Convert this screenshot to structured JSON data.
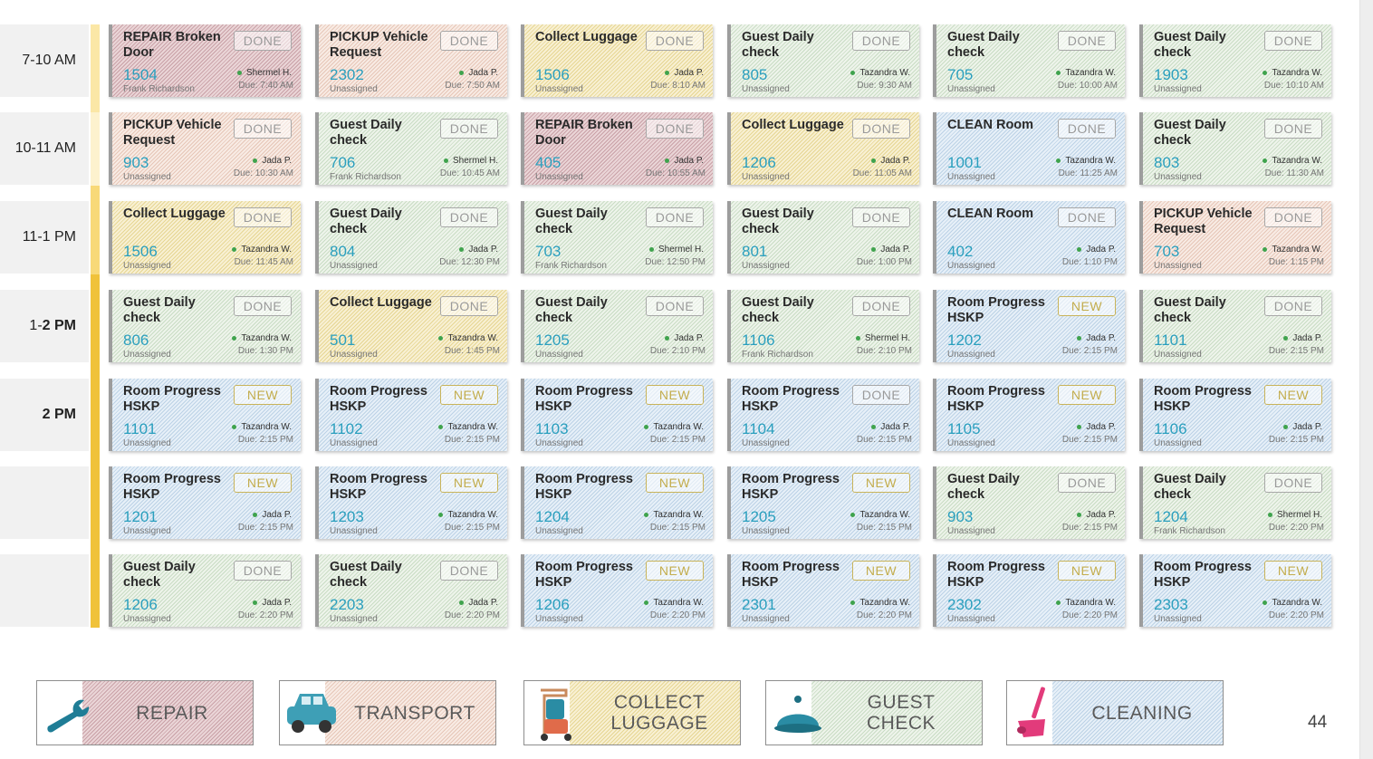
{
  "time_slots": [
    {
      "pre": "7-10 AM",
      "bold": ""
    },
    {
      "pre": "10-11 AM",
      "bold": ""
    },
    {
      "pre": "11-1 PM",
      "bold": ""
    },
    {
      "pre": "1-",
      "bold": "2 PM"
    },
    {
      "pre": "",
      "bold": "2 PM"
    },
    {
      "pre": "",
      "bold": ""
    },
    {
      "pre": "",
      "bold": ""
    }
  ],
  "rows": [
    [
      {
        "type": "repair",
        "title": "REPAIR Broken Door",
        "status": "DONE",
        "room": "1504",
        "staff": "Shermel H.",
        "due": "Due: 7:40 AM",
        "assignee": "Frank Richardson"
      },
      {
        "type": "pickup",
        "title": "PICKUP Vehicle Request",
        "status": "DONE",
        "room": "2302",
        "staff": "Jada P.",
        "due": "Due: 7:50 AM",
        "assignee": "Unassigned"
      },
      {
        "type": "luggage",
        "title": "Collect Luggage",
        "status": "DONE",
        "room": "1506",
        "staff": "Jada P.",
        "due": "Due: 8:10 AM",
        "assignee": "Unassigned"
      },
      {
        "type": "guest",
        "title": "Guest Daily check",
        "status": "DONE",
        "room": "805",
        "staff": "Tazandra W.",
        "due": "Due: 9:30 AM",
        "assignee": "Unassigned"
      },
      {
        "type": "guest",
        "title": "Guest Daily check",
        "status": "DONE",
        "room": "705",
        "staff": "Tazandra W.",
        "due": "Due: 10:00 AM",
        "assignee": "Unassigned"
      },
      {
        "type": "guest",
        "title": "Guest Daily check",
        "status": "DONE",
        "room": "1903",
        "staff": "Tazandra W.",
        "due": "Due: 10:10 AM",
        "assignee": "Unassigned"
      }
    ],
    [
      {
        "type": "pickup",
        "title": "PICKUP Vehicle Request",
        "status": "DONE",
        "room": "903",
        "staff": "Jada P.",
        "due": "Due: 10:30 AM",
        "assignee": "Unassigned"
      },
      {
        "type": "guest",
        "title": "Guest Daily check",
        "status": "DONE",
        "room": "706",
        "staff": "Shermel H.",
        "due": "Due: 10:45 AM",
        "assignee": "Frank Richardson"
      },
      {
        "type": "repair",
        "title": "REPAIR Broken Door",
        "status": "DONE",
        "room": "405",
        "staff": "Jada P.",
        "due": "Due: 10:55 AM",
        "assignee": "Unassigned"
      },
      {
        "type": "luggage",
        "title": "Collect Luggage",
        "status": "DONE",
        "room": "1206",
        "staff": "Jada P.",
        "due": "Due: 11:05 AM",
        "assignee": "Unassigned"
      },
      {
        "type": "clean",
        "title": "CLEAN Room",
        "status": "DONE",
        "room": "1001",
        "staff": "Tazandra W.",
        "due": "Due: 11:25 AM",
        "assignee": "Unassigned"
      },
      {
        "type": "guest",
        "title": "Guest Daily check",
        "status": "DONE",
        "room": "803",
        "staff": "Tazandra W.",
        "due": "Due: 11:30 AM",
        "assignee": "Unassigned"
      }
    ],
    [
      {
        "type": "luggage",
        "title": "Collect Luggage",
        "status": "DONE",
        "room": "1506",
        "staff": "Tazandra W.",
        "due": "Due: 11:45 AM",
        "assignee": "Unassigned"
      },
      {
        "type": "guest",
        "title": "Guest Daily check",
        "status": "DONE",
        "room": "804",
        "staff": "Jada P.",
        "due": "Due: 12:30 PM",
        "assignee": "Unassigned"
      },
      {
        "type": "guest",
        "title": "Guest Daily check",
        "status": "DONE",
        "room": "703",
        "staff": "Shermel H.",
        "due": "Due: 12:50 PM",
        "assignee": "Frank Richardson"
      },
      {
        "type": "guest",
        "title": "Guest Daily check",
        "status": "DONE",
        "room": "801",
        "staff": "Jada P.",
        "due": "Due: 1:00 PM",
        "assignee": "Unassigned"
      },
      {
        "type": "clean",
        "title": "CLEAN Room",
        "status": "DONE",
        "room": "402",
        "staff": "Jada P.",
        "due": "Due: 1:10 PM",
        "assignee": "Unassigned"
      },
      {
        "type": "pickup",
        "title": "PICKUP Vehicle Request",
        "status": "DONE",
        "room": "703",
        "staff": "Tazandra W.",
        "due": "Due: 1:15 PM",
        "assignee": "Unassigned"
      }
    ],
    [
      {
        "type": "guest",
        "title": "Guest Daily check",
        "status": "DONE",
        "room": "806",
        "staff": "Tazandra W.",
        "due": "Due: 1:30 PM",
        "assignee": "Unassigned"
      },
      {
        "type": "luggage",
        "title": "Collect Luggage",
        "status": "DONE",
        "room": "501",
        "staff": "Tazandra W.",
        "due": "Due: 1:45 PM",
        "assignee": "Unassigned"
      },
      {
        "type": "guest",
        "title": "Guest Daily check",
        "status": "DONE",
        "room": "1205",
        "staff": "Jada P.",
        "due": "Due: 2:10 PM",
        "assignee": "Unassigned"
      },
      {
        "type": "guest",
        "title": "Guest Daily check",
        "status": "DONE",
        "room": "1106",
        "staff": "Shermel H.",
        "due": "Due: 2:10 PM",
        "assignee": "Frank Richardson"
      },
      {
        "type": "clean",
        "title": "Room Progress HSKP",
        "status": "NEW",
        "room": "1202",
        "staff": "Jada P.",
        "due": "Due: 2:15 PM",
        "assignee": "Unassigned"
      },
      {
        "type": "guest",
        "title": "Guest Daily check",
        "status": "DONE",
        "room": "1101",
        "staff": "Jada P.",
        "due": "Due: 2:15 PM",
        "assignee": "Unassigned"
      }
    ],
    [
      {
        "type": "clean",
        "title": "Room Progress HSKP",
        "status": "NEW",
        "room": "1101",
        "staff": "Tazandra W.",
        "due": "Due: 2:15 PM",
        "assignee": "Unassigned"
      },
      {
        "type": "clean",
        "title": "Room Progress HSKP",
        "status": "NEW",
        "room": "1102",
        "staff": "Tazandra W.",
        "due": "Due: 2:15 PM",
        "assignee": "Unassigned"
      },
      {
        "type": "clean",
        "title": "Room Progress HSKP",
        "status": "NEW",
        "room": "1103",
        "staff": "Tazandra W.",
        "due": "Due: 2:15 PM",
        "assignee": "Unassigned"
      },
      {
        "type": "clean",
        "title": "Room Progress HSKP",
        "status": "DONE",
        "room": "1104",
        "staff": "Jada P.",
        "due": "Due: 2:15 PM",
        "assignee": "Unassigned"
      },
      {
        "type": "clean",
        "title": "Room Progress HSKP",
        "status": "NEW",
        "room": "1105",
        "staff": "Jada P.",
        "due": "Due: 2:15 PM",
        "assignee": "Unassigned"
      },
      {
        "type": "clean",
        "title": "Room Progress HSKP",
        "status": "NEW",
        "room": "1106",
        "staff": "Jada P.",
        "due": "Due: 2:15 PM",
        "assignee": "Unassigned"
      }
    ],
    [
      {
        "type": "clean",
        "title": "Room Progress HSKP",
        "status": "NEW",
        "room": "1201",
        "staff": "Jada P.",
        "due": "Due: 2:15 PM",
        "assignee": "Unassigned"
      },
      {
        "type": "clean",
        "title": "Room Progress HSKP",
        "status": "NEW",
        "room": "1203",
        "staff": "Tazandra W.",
        "due": "Due: 2:15 PM",
        "assignee": "Unassigned"
      },
      {
        "type": "clean",
        "title": "Room Progress HSKP",
        "status": "NEW",
        "room": "1204",
        "staff": "Tazandra W.",
        "due": "Due: 2:15 PM",
        "assignee": "Unassigned"
      },
      {
        "type": "clean",
        "title": "Room Progress HSKP",
        "status": "NEW",
        "room": "1205",
        "staff": "Tazandra W.",
        "due": "Due: 2:15 PM",
        "assignee": "Unassigned"
      },
      {
        "type": "guest",
        "title": "Guest Daily check",
        "status": "DONE",
        "room": "903",
        "staff": "Jada P.",
        "due": "Due: 2:15 PM",
        "assignee": "Unassigned"
      },
      {
        "type": "guest",
        "title": "Guest Daily check",
        "status": "DONE",
        "room": "1204",
        "staff": "Shermel H.",
        "due": "Due: 2:20 PM",
        "assignee": "Frank Richardson"
      }
    ],
    [
      {
        "type": "guest",
        "title": "Guest Daily check",
        "status": "DONE",
        "room": "1206",
        "staff": "Jada P.",
        "due": "Due: 2:20 PM",
        "assignee": "Unassigned"
      },
      {
        "type": "guest",
        "title": "Guest Daily check",
        "status": "DONE",
        "room": "2203",
        "staff": "Jada P.",
        "due": "Due: 2:20 PM",
        "assignee": "Unassigned"
      },
      {
        "type": "clean",
        "title": "Room Progress HSKP",
        "status": "NEW",
        "room": "1206",
        "staff": "Tazandra W.",
        "due": "Due: 2:20 PM",
        "assignee": "Unassigned"
      },
      {
        "type": "clean",
        "title": "Room Progress HSKP",
        "status": "NEW",
        "room": "2301",
        "staff": "Tazandra W.",
        "due": "Due: 2:20 PM",
        "assignee": "Unassigned"
      },
      {
        "type": "clean",
        "title": "Room Progress HSKP",
        "status": "NEW",
        "room": "2302",
        "staff": "Tazandra W.",
        "due": "Due: 2:20 PM",
        "assignee": "Unassigned"
      },
      {
        "type": "clean",
        "title": "Room Progress HSKP",
        "status": "NEW",
        "room": "2303",
        "staff": "Tazandra W.",
        "due": "Due: 2:20 PM",
        "assignee": "Unassigned"
      }
    ]
  ],
  "legend": [
    {
      "key": "repair",
      "label": "REPAIR",
      "icon": "wrench-icon",
      "color": "#1f7d96"
    },
    {
      "key": "transport",
      "label": "TRANSPORT",
      "icon": "car-icon",
      "color": "#3e9fb6"
    },
    {
      "key": "luggage",
      "label": "COLLECT LUGGAGE",
      "icon": "luggage-cart-icon",
      "color": "#c98a5c"
    },
    {
      "key": "guest",
      "label": "GUEST CHECK",
      "icon": "service-bell-icon",
      "color": "#2a8ca4"
    },
    {
      "key": "clean",
      "label": "CLEANING",
      "icon": "dustpan-icon",
      "color": "#e23b7b"
    }
  ],
  "page_number": "44",
  "colors": {
    "rail_light": "#fbe7a6",
    "rail_mid": "#f8d978",
    "rail_dark": "#f0c23a",
    "room_number": "#2a9fbe",
    "status_dot": "#3fa34d"
  }
}
